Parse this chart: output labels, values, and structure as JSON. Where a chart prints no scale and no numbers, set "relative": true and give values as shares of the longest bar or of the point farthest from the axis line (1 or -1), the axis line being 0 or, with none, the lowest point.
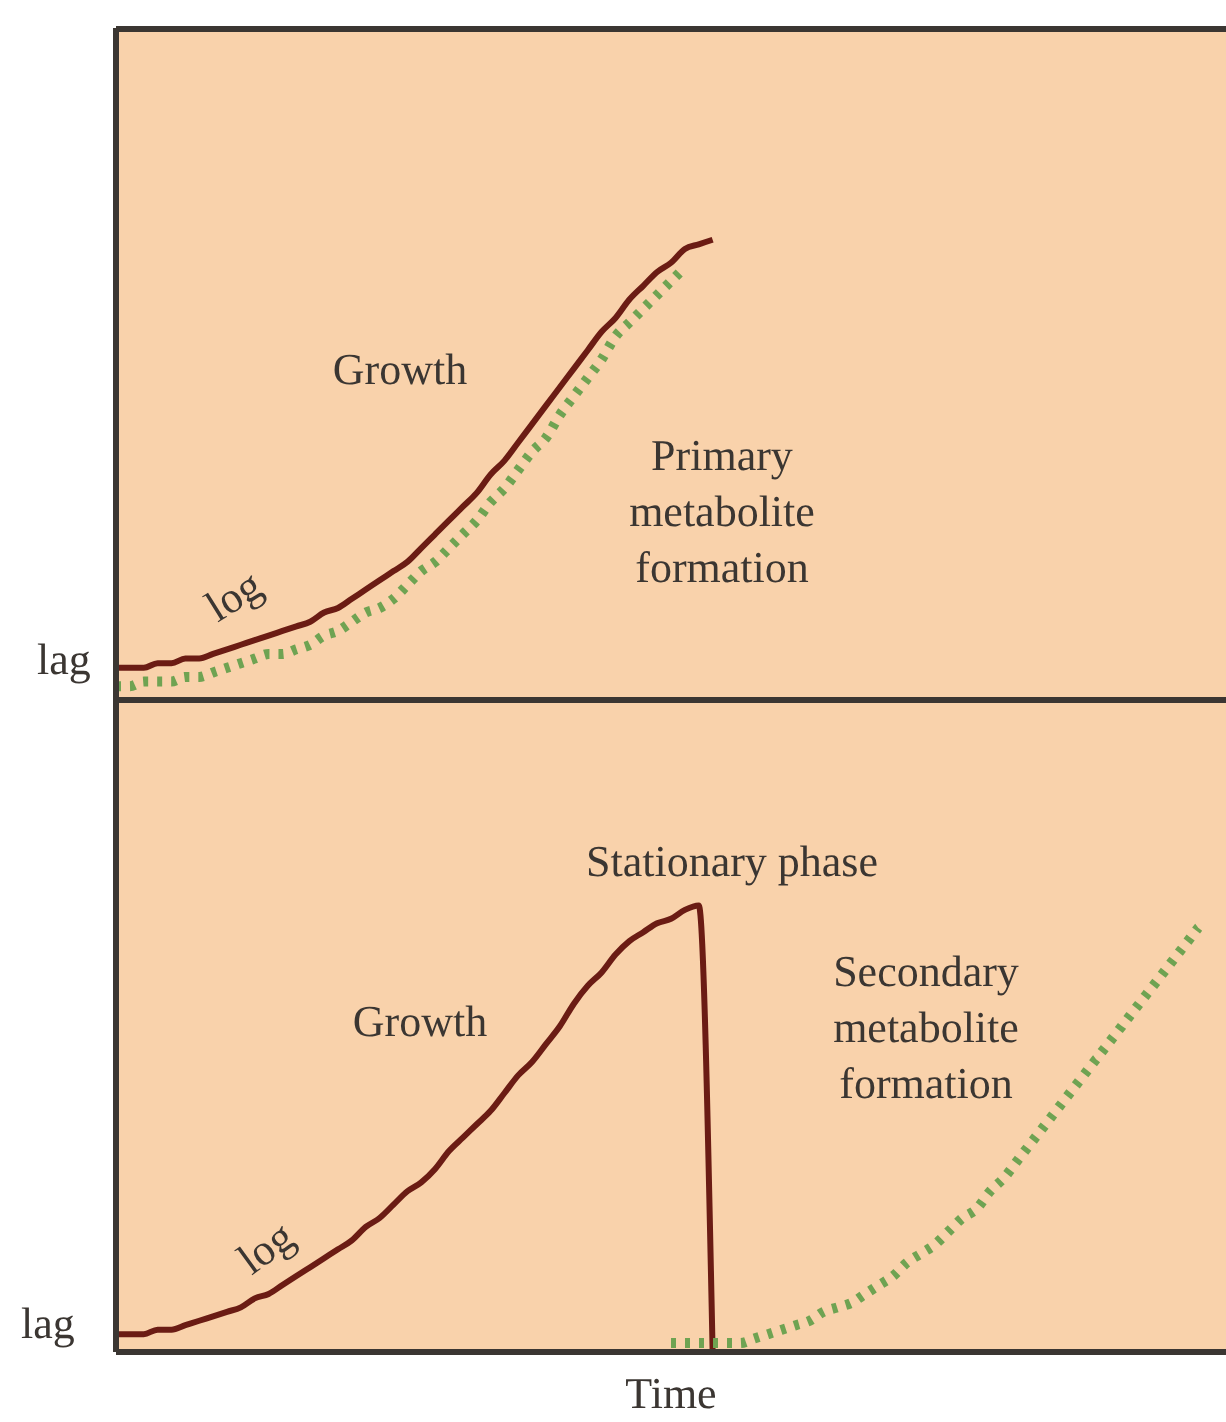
{
  "chart_data": [
    {
      "type": "line",
      "relative": true,
      "tick_labels": false,
      "categories": [
        null,
        null,
        null,
        null,
        null,
        null,
        null,
        null,
        null,
        null,
        null,
        null,
        null,
        null,
        null,
        null,
        null,
        null,
        null,
        null,
        null,
        null,
        null,
        null,
        null,
        null,
        null,
        null,
        null,
        null,
        null,
        null,
        null,
        null,
        null,
        null,
        null,
        null,
        null,
        null,
        null,
        null,
        null,
        null,
        null,
        null,
        null,
        null,
        null,
        null,
        null,
        null,
        null,
        null,
        null,
        null,
        null,
        null,
        null,
        null,
        null,
        null,
        null,
        null,
        null,
        null,
        null,
        null,
        null,
        null,
        null,
        null,
        null,
        null,
        null,
        null,
        null,
        null,
        null,
        null,
        null
      ],
      "annotations": [
        "log",
        "lag"
      ],
      "series": [
        {
          "name": "Growth",
          "color": "#6b1c14",
          "line_style": "solid",
          "values": [
            0.07,
            0.07,
            0.07,
            0.08,
            0.08,
            0.09,
            0.09,
            0.1,
            0.11,
            0.12,
            0.13,
            0.14,
            0.15,
            0.16,
            0.17,
            0.19,
            0.2,
            0.22,
            0.24,
            0.26,
            0.28,
            0.3,
            0.33,
            0.36,
            0.39,
            0.42,
            0.45,
            0.49,
            0.52,
            0.56,
            0.6,
            0.64,
            0.68,
            0.72,
            0.76,
            0.8,
            0.83,
            0.87,
            0.9,
            0.93,
            0.95,
            0.98,
            0.99,
            1.0,
            null,
            null,
            null,
            null,
            null,
            null,
            null,
            null,
            null,
            null,
            null,
            null,
            null,
            null,
            null,
            null,
            null,
            null,
            null,
            null,
            null,
            null,
            null,
            null,
            null,
            null,
            null,
            null,
            null,
            null,
            null,
            null,
            null,
            null,
            null,
            null,
            null
          ]
        },
        {
          "name": "Primary metabolite formation",
          "color": "#6fa352",
          "line_style": "dotted",
          "values": [
            0.03,
            0.03,
            0.04,
            0.04,
            0.04,
            0.05,
            0.05,
            0.06,
            0.07,
            0.08,
            0.09,
            0.1,
            0.1,
            0.11,
            0.12,
            0.14,
            0.15,
            0.17,
            0.19,
            0.2,
            0.22,
            0.25,
            0.28,
            0.3,
            0.33,
            0.36,
            0.39,
            0.43,
            0.46,
            0.5,
            0.54,
            0.57,
            0.62,
            0.66,
            0.7,
            0.74,
            0.79,
            0.82,
            0.85,
            0.88,
            0.91,
            0.94,
            null,
            null,
            null,
            null,
            null,
            null,
            null,
            null,
            null,
            null,
            null,
            null,
            null,
            null,
            null,
            null,
            null,
            null,
            null,
            null,
            null,
            null,
            null,
            null,
            null,
            null,
            null,
            null,
            null,
            null,
            null,
            null,
            null,
            null,
            null,
            null,
            null,
            null,
            null
          ]
        }
      ]
    },
    {
      "type": "line",
      "relative": true,
      "tick_labels": false,
      "xlabel": "Time",
      "categories": [
        null,
        null,
        null,
        null,
        null,
        null,
        null,
        null,
        null,
        null,
        null,
        null,
        null,
        null,
        null,
        null,
        null,
        null,
        null,
        null,
        null,
        null,
        null,
        null,
        null,
        null,
        null,
        null,
        null,
        null,
        null,
        null,
        null,
        null,
        null,
        null,
        null,
        null,
        null,
        null,
        null,
        null,
        null,
        null,
        null,
        null,
        null,
        null,
        null,
        null,
        null,
        null,
        null,
        null,
        null,
        null,
        null,
        null,
        null,
        null,
        null,
        null,
        null,
        null,
        null,
        null,
        null,
        null,
        null,
        null,
        null,
        null,
        null,
        null,
        null,
        null,
        null,
        null,
        null,
        null,
        null
      ],
      "annotations": [
        "Stationary phase",
        "log",
        "lag"
      ],
      "series": [
        {
          "name": "Growth",
          "color": "#6b1c14",
          "line_style": "solid",
          "values": [
            0.04,
            0.04,
            0.04,
            0.05,
            0.05,
            0.06,
            0.07,
            0.08,
            0.09,
            0.1,
            0.12,
            0.13,
            0.15,
            0.17,
            0.19,
            0.21,
            0.23,
            0.25,
            0.28,
            0.3,
            0.33,
            0.36,
            0.38,
            0.41,
            0.45,
            0.48,
            0.51,
            0.54,
            0.58,
            0.62,
            0.65,
            0.69,
            0.73,
            0.78,
            0.82,
            0.85,
            0.89,
            0.92,
            0.94,
            0.96,
            0.97,
            0.99,
            1.0,
            0,
            null,
            null,
            null,
            null,
            null,
            null,
            null,
            null,
            null,
            null,
            null,
            null,
            null,
            null,
            null,
            null,
            null,
            null,
            null,
            null,
            null,
            null,
            null,
            null,
            null,
            null,
            null,
            null,
            null,
            null,
            null,
            null,
            null,
            null,
            null,
            null,
            null
          ]
        },
        {
          "name": "Secondary metabolite formation",
          "color": "#6fa352",
          "line_style": "dotted",
          "values": [
            null,
            null,
            null,
            null,
            null,
            null,
            null,
            null,
            null,
            null,
            null,
            null,
            null,
            null,
            null,
            null,
            null,
            null,
            null,
            null,
            null,
            null,
            null,
            null,
            null,
            null,
            null,
            null,
            null,
            null,
            null,
            null,
            null,
            null,
            null,
            null,
            null,
            null,
            null,
            null,
            0.02,
            0.02,
            0.02,
            0.02,
            0.02,
            0.02,
            0.03,
            0.04,
            0.05,
            0.06,
            0.07,
            0.09,
            0.1,
            0.11,
            0.13,
            0.15,
            0.17,
            0.2,
            0.22,
            0.24,
            0.27,
            0.3,
            0.32,
            0.36,
            0.39,
            0.43,
            0.47,
            0.51,
            0.55,
            0.59,
            0.63,
            0.67,
            0.71,
            0.75,
            0.79,
            0.83,
            0.87,
            0.91,
            0.95,
            null,
            null
          ]
        }
      ]
    }
  ]
}
